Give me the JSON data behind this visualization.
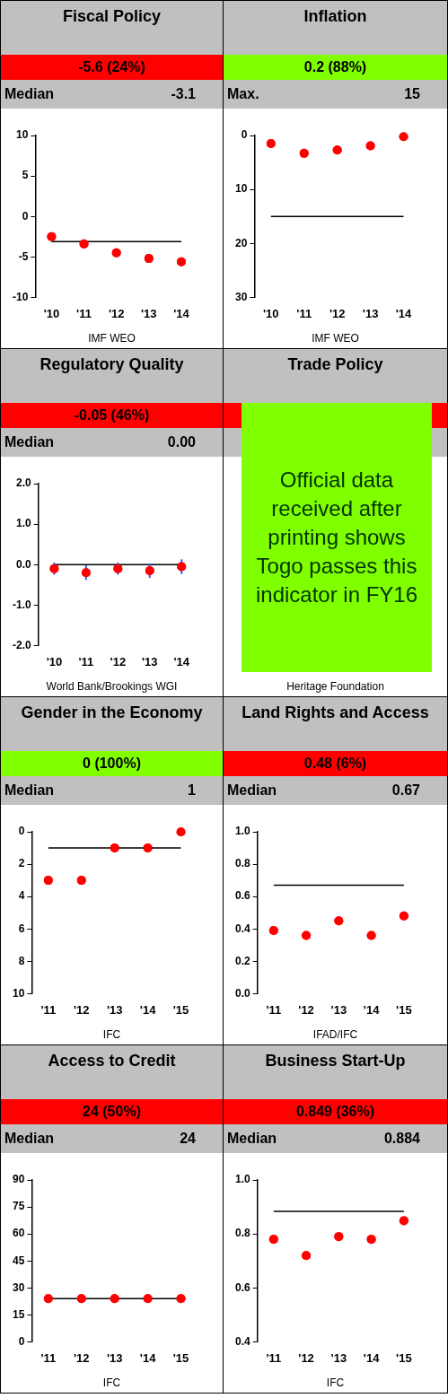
{
  "chart_data": [
    {
      "type": "scatter",
      "title": "Fiscal Policy",
      "subtitle": "-5.6 (24%)",
      "categories": [
        "'10",
        "'11",
        "'12",
        "'13",
        "'14"
      ],
      "series": [
        {
          "color": "#ff0000",
          "values": [
            -2.5,
            -3.4,
            -4.5,
            -5.2,
            -5.6
          ]
        }
      ],
      "ylim": [
        -10,
        10
      ],
      "yticks": [
        -10,
        -5,
        0,
        5,
        10
      ],
      "marker": "circle",
      "ref_lines": [
        {
          "axis": "y",
          "value": -3.1,
          "label": "Median",
          "color": "#000000"
        }
      ],
      "annotations": [
        "-3.1",
        "IMF WEO"
      ]
    },
    {
      "type": "scatter",
      "title": "Inflation",
      "subtitle": "0.2 (88%)",
      "categories": [
        "'10",
        "'11",
        "'12",
        "'13",
        "'14"
      ],
      "series": [
        {
          "color": "#ff0000",
          "values": [
            1.5,
            3.3,
            2.7,
            1.9,
            0.2
          ]
        }
      ],
      "ylim": [
        30,
        0
      ],
      "yticks": [
        0,
        10,
        20,
        30
      ],
      "marker": "circle",
      "ref_lines": [
        {
          "axis": "y",
          "value": 15,
          "label": "Max.",
          "color": "#000000"
        }
      ],
      "annotations": [
        "15",
        "IMF WEO"
      ]
    },
    {
      "type": "scatter",
      "title": "Regulatory Quality",
      "subtitle": "-0.05 (46%)",
      "categories": [
        "'10",
        "'11",
        "'12",
        "'13",
        "'14"
      ],
      "series": [
        {
          "color": "#ff0000",
          "values": [
            -0.1,
            -0.2,
            -0.1,
            -0.15,
            -0.05
          ],
          "errors": [
            0.15,
            0.18,
            0.15,
            0.18,
            0.18
          ]
        }
      ],
      "ylim": [
        -2,
        2
      ],
      "yticks": [
        {
          "value": -2,
          "label": "-2.0"
        },
        {
          "value": -1,
          "label": "-1.0"
        },
        {
          "value": 0,
          "label": "0.0"
        },
        {
          "value": 1,
          "label": "1.0"
        },
        {
          "value": 2,
          "label": "2.0"
        }
      ],
      "marker": "circle",
      "ref_lines": [
        {
          "axis": "y",
          "value": 0,
          "label": "Median",
          "color": "#000000"
        }
      ],
      "annotations": [
        "0.00",
        "World Bank/Brookings WGI"
      ]
    },
    {
      "type": "other",
      "title": "Trade Policy",
      "annotations": [
        "Official data received after printing shows Togo passes this indicator in FY16",
        "Heritage Foundation"
      ]
    },
    {
      "type": "scatter",
      "title": "Gender in the Economy",
      "subtitle": "0 (100%)",
      "categories": [
        "'11",
        "'12",
        "'13",
        "'14",
        "'15"
      ],
      "series": [
        {
          "color": "#ff0000",
          "values": [
            3,
            3,
            1,
            1,
            0
          ]
        }
      ],
      "ylim": [
        10,
        0
      ],
      "yticks": [
        0,
        2,
        4,
        6,
        8,
        10
      ],
      "marker": "circle",
      "ref_lines": [
        {
          "axis": "y",
          "value": 1,
          "label": "Median",
          "color": "#000000"
        }
      ],
      "annotations": [
        "1",
        "IFC"
      ]
    },
    {
      "type": "scatter",
      "title": "Land Rights and Access",
      "subtitle": "0.48 (6%)",
      "categories": [
        "'11",
        "'12",
        "'13",
        "'14",
        "'15"
      ],
      "series": [
        {
          "color": "#ff0000",
          "values": [
            0.39,
            0.36,
            0.45,
            0.36,
            0.48
          ]
        }
      ],
      "ylim": [
        0,
        1
      ],
      "yticks": [
        {
          "value": 0,
          "label": "0.0"
        },
        {
          "value": 0.2,
          "label": "0.2"
        },
        {
          "value": 0.4,
          "label": "0.4"
        },
        {
          "value": 0.6,
          "label": "0.6"
        },
        {
          "value": 0.8,
          "label": "0.8"
        },
        {
          "value": 1,
          "label": "1.0"
        }
      ],
      "marker": "circle",
      "ref_lines": [
        {
          "axis": "y",
          "value": 0.67,
          "label": "Median",
          "color": "#000000"
        }
      ],
      "annotations": [
        "0.67",
        "IFAD/IFC"
      ]
    },
    {
      "type": "scatter",
      "title": "Access to Credit",
      "subtitle": "24 (50%)",
      "categories": [
        "'11",
        "'12",
        "'13",
        "'14",
        "'15"
      ],
      "series": [
        {
          "color": "#ff0000",
          "values": [
            24,
            24,
            24,
            24,
            24
          ]
        }
      ],
      "ylim": [
        0,
        90
      ],
      "yticks": [
        0,
        15,
        30,
        45,
        60,
        75,
        90
      ],
      "marker": "circle",
      "ref_lines": [
        {
          "axis": "y",
          "value": 24,
          "label": "Median",
          "color": "#000000"
        }
      ],
      "annotations": [
        "24",
        "IFC"
      ]
    },
    {
      "type": "scatter",
      "title": "Business Start-Up",
      "subtitle": "0.849 (36%)",
      "categories": [
        "'11",
        "'12",
        "'13",
        "'14",
        "'15"
      ],
      "series": [
        {
          "color": "#ff0000",
          "values": [
            0.78,
            0.72,
            0.79,
            0.78,
            0.849
          ]
        }
      ],
      "ylim": [
        0.4,
        1
      ],
      "yticks": [
        {
          "value": 0.4,
          "label": "0.4"
        },
        {
          "value": 0.6,
          "label": "0.6"
        },
        {
          "value": 0.8,
          "label": "0.8"
        },
        {
          "value": 1,
          "label": "1.0"
        }
      ],
      "marker": "circle",
      "ref_lines": [
        {
          "axis": "y",
          "value": 0.884,
          "label": "Median",
          "color": "#000000"
        }
      ],
      "annotations": [
        "0.884",
        "IFC"
      ]
    }
  ]
}
